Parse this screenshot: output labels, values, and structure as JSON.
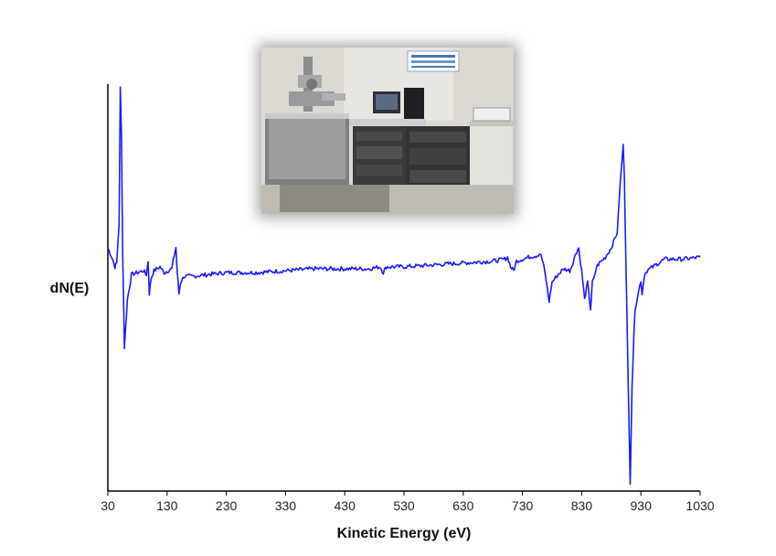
{
  "chart_data": {
    "type": "line",
    "title": "",
    "xlabel": "Kinetic Energy (eV)",
    "ylabel": "dN(E)",
    "xlim": [
      30,
      1030
    ],
    "ylim": [
      -1,
      1
    ],
    "xticks": [
      30,
      130,
      230,
      330,
      430,
      530,
      630,
      730,
      830,
      930,
      1030
    ],
    "xtick_labels": [
      "30",
      "130",
      "230",
      "330",
      "430",
      "530",
      "630",
      "730",
      "830",
      "930",
      "1030"
    ],
    "grid": false,
    "legend": "none",
    "line_color": "#1a1aff",
    "series": [
      {
        "x": [
          30,
          38,
          42,
          45,
          49,
          51,
          53,
          55,
          58,
          63,
          70,
          80,
          90,
          95,
          98,
          100,
          103,
          108,
          118,
          125,
          138,
          142,
          145,
          147,
          150,
          153,
          158,
          170,
          200,
          230,
          280,
          330,
          380,
          430,
          470,
          490,
          495,
          500,
          530,
          580,
          630,
          680,
          700,
          705,
          710,
          715,
          720,
          740,
          755,
          760,
          765,
          770,
          775,
          780,
          790,
          800,
          810,
          815,
          820,
          825,
          826,
          830,
          835,
          840,
          842,
          845,
          848,
          852,
          855,
          860,
          870,
          880,
          890,
          895,
          900,
          902,
          905,
          908,
          912,
          915,
          920,
          930,
          932,
          936,
          940,
          950,
          970,
          1000,
          1030
        ],
        "y": [
          0.12,
          0.06,
          0.02,
          0.04,
          0.25,
          0.95,
          0.7,
          0.1,
          -0.4,
          -0.15,
          -0.02,
          -0.01,
          0.0,
          -0.02,
          0.05,
          -0.12,
          -0.04,
          0.0,
          0.02,
          -0.01,
          0.01,
          0.08,
          0.12,
          0.0,
          -0.12,
          -0.06,
          -0.03,
          -0.03,
          -0.02,
          -0.01,
          -0.01,
          0.0,
          0.01,
          0.01,
          0.01,
          0.02,
          -0.01,
          0.02,
          0.02,
          0.03,
          0.04,
          0.05,
          0.06,
          0.07,
          0.02,
          0.0,
          0.05,
          0.07,
          0.08,
          0.09,
          0.04,
          -0.05,
          -0.16,
          -0.06,
          -0.02,
          0.01,
          0.0,
          0.04,
          0.09,
          0.12,
          0.09,
          0.0,
          -0.15,
          -0.06,
          -0.12,
          -0.2,
          -0.06,
          -0.03,
          0.02,
          0.04,
          0.07,
          0.12,
          0.2,
          0.45,
          0.65,
          0.5,
          0.0,
          -0.5,
          -1.1,
          -0.6,
          -0.2,
          -0.05,
          -0.12,
          -0.02,
          0.0,
          0.02,
          0.06,
          0.06,
          0.07
        ]
      }
    ]
  },
  "inset_photo": {
    "subject": "laboratory-instrument-photo"
  }
}
